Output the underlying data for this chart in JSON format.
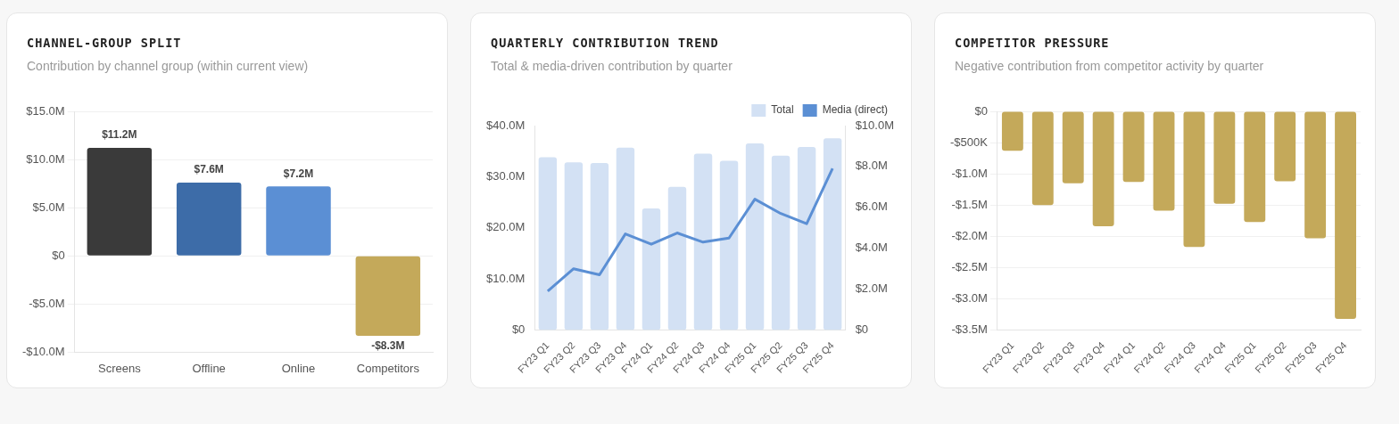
{
  "chart_data": [
    {
      "type": "bar",
      "title": "CHANNEL-GROUP SPLIT",
      "subtitle": "Contribution by channel group (within current view)",
      "categories": [
        "Screens",
        "Offline",
        "Online",
        "Competitors"
      ],
      "values": [
        11.2,
        7.6,
        7.2,
        -8.3
      ],
      "colors": [
        "#3a3a3a",
        "#3d6ca8",
        "#5b8fd4",
        "#c4a95a"
      ],
      "value_labels": [
        "$11.2M",
        "$7.6M",
        "$7.2M",
        "-$8.3M"
      ],
      "ylim": [
        -10,
        15
      ],
      "yticks": [
        {
          "value": -10,
          "label": "-$10.0M"
        },
        {
          "value": -5,
          "label": "-$5.0M"
        },
        {
          "value": 0,
          "label": "$0"
        },
        {
          "value": 5,
          "label": "$5.0M"
        },
        {
          "value": 10,
          "label": "$10.0M"
        },
        {
          "value": 15,
          "label": "$15.0M"
        }
      ],
      "grid": "y"
    },
    {
      "type": "bar",
      "title": "QUARTERLY CONTRIBUTION TREND",
      "subtitle": "Total & media-driven contribution by quarter",
      "categories": [
        "FY23 Q1",
        "FY23 Q2",
        "FY23 Q3",
        "FY23 Q4",
        "FY24 Q1",
        "FY24 Q2",
        "FY24 Q3",
        "FY24 Q4",
        "FY25 Q1",
        "FY25 Q2",
        "FY25 Q3",
        "FY25 Q4"
      ],
      "series": [
        {
          "name": "Total",
          "color": "#d3e1f4",
          "values": [
            33.8,
            32.8,
            32.7,
            35.7,
            23.8,
            28.0,
            34.5,
            33.1,
            36.5,
            34.1,
            35.8,
            37.5
          ]
        },
        {
          "name": "Media (direct)",
          "type": "line",
          "axis": "y2",
          "color": "#5b8fd4",
          "values": [
            1.9,
            3.0,
            2.7,
            4.7,
            4.2,
            4.75,
            4.3,
            4.5,
            6.4,
            5.7,
            5.2,
            7.9
          ]
        }
      ],
      "ylim": [
        0,
        40
      ],
      "yticks": [
        {
          "value": 0,
          "label": "$0"
        },
        {
          "value": 10,
          "label": "$10.0M"
        },
        {
          "value": 20,
          "label": "$20.0M"
        },
        {
          "value": 30,
          "label": "$30.0M"
        },
        {
          "value": 40,
          "label": "$40.0M"
        }
      ],
      "y2lim": [
        0,
        10
      ],
      "y2ticks": [
        {
          "value": 0,
          "label": "$0"
        },
        {
          "value": 2,
          "label": "$2.0M"
        },
        {
          "value": 4,
          "label": "$4.0M"
        },
        {
          "value": 6,
          "label": "$6.0M"
        },
        {
          "value": 8,
          "label": "$8.0M"
        },
        {
          "value": 10,
          "label": "$10.0M"
        }
      ],
      "legend": "top right"
    },
    {
      "type": "bar",
      "title": "COMPETITOR PRESSURE",
      "subtitle": "Negative contribution from competitor activity by quarter",
      "categories": [
        "FY23 Q1",
        "FY23 Q2",
        "FY23 Q3",
        "FY23 Q4",
        "FY24 Q1",
        "FY24 Q2",
        "FY24 Q3",
        "FY24 Q4",
        "FY25 Q1",
        "FY25 Q2",
        "FY25 Q3",
        "FY25 Q4"
      ],
      "values": [
        -630000,
        -1500000,
        -1150000,
        -1840000,
        -1130000,
        -1590000,
        -2170000,
        -1480000,
        -1770000,
        -1120000,
        -2030000,
        -3320000
      ],
      "colors": [
        "#c4a95a",
        "#c4a95a",
        "#c4a95a",
        "#c4a95a",
        "#c4a95a",
        "#c4a95a",
        "#c4a95a",
        "#c4a95a",
        "#c4a95a",
        "#c4a95a",
        "#c4a95a",
        "#c4a95a"
      ],
      "ylim": [
        -3500000,
        0
      ],
      "yticks": [
        {
          "value": -3500000,
          "label": "-$3.5M"
        },
        {
          "value": -3000000,
          "label": "-$3.0M"
        },
        {
          "value": -2500000,
          "label": "-$2.5M"
        },
        {
          "value": -2000000,
          "label": "-$2.0M"
        },
        {
          "value": -1500000,
          "label": "-$1.5M"
        },
        {
          "value": -1000000,
          "label": "-$1.0M"
        },
        {
          "value": -500000,
          "label": "-$500K"
        },
        {
          "value": 0,
          "label": "$0"
        }
      ],
      "grid": "y"
    }
  ]
}
